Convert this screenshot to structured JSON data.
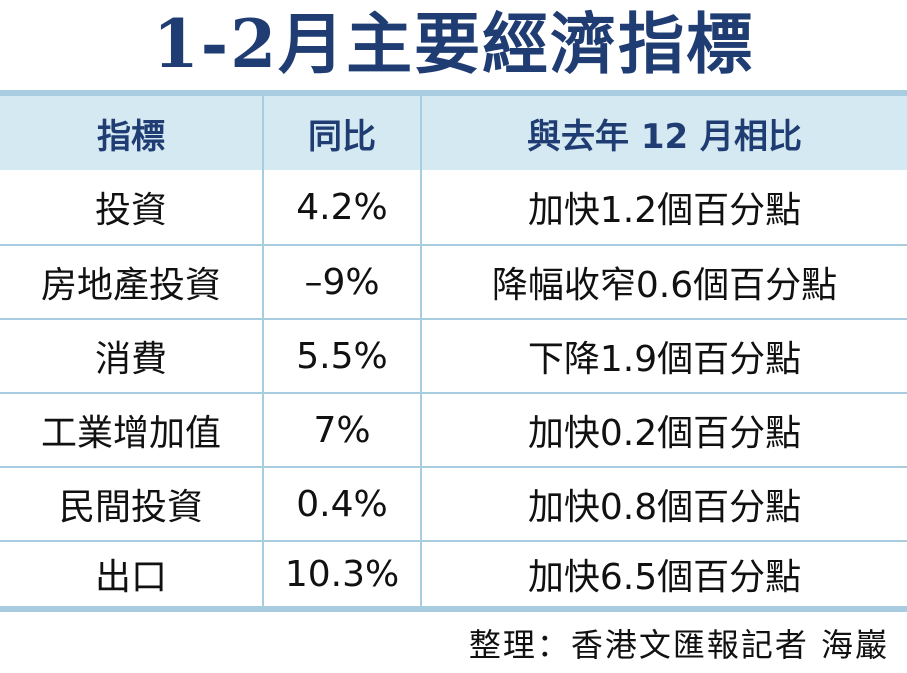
{
  "title": "1-2月主要經濟指標",
  "table": {
    "headers": [
      "指標",
      "同比",
      "與去年 12 月相比"
    ],
    "rows": [
      [
        "投資",
        "4.2%",
        "加快1.2個百分點"
      ],
      [
        "房地產投資",
        "–9%",
        "降幅收窄0.6個百分點"
      ],
      [
        "消費",
        "5.5%",
        "下降1.9個百分點"
      ],
      [
        "工業增加值",
        "7%",
        "加快0.2個百分點"
      ],
      [
        "民間投資",
        "0.4%",
        "加快0.8個百分點"
      ],
      [
        "出口",
        "10.3%",
        "加快6.5個百分點"
      ]
    ]
  },
  "credit": "整理：香港文匯報記者  海巖",
  "colors": {
    "title": "#1f3c73",
    "header_bg": "#d5e9f2",
    "grid": "#a9cde0"
  }
}
